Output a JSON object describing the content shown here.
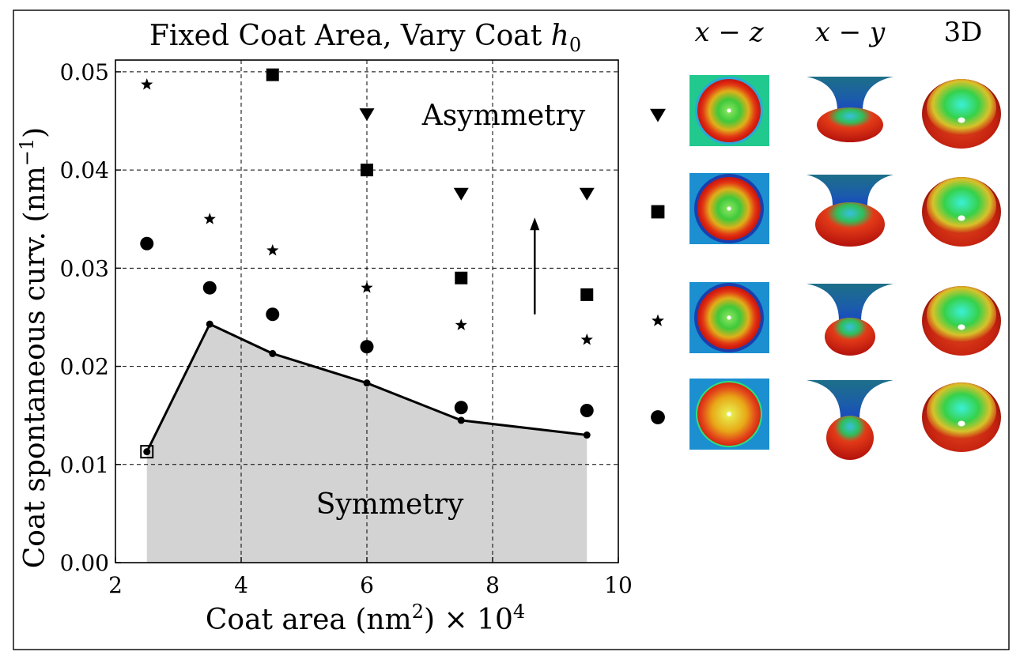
{
  "chart_data": {
    "type": "scatter",
    "title_prefix": "Fixed Coat Area, Vary Coat ",
    "title_var": "h",
    "title_sub": "0",
    "xlabel_main": "Coat area (nm",
    "xlabel_sup": "2",
    "xlabel_tail": ") × 10",
    "xlabel_exp": "4",
    "ylabel_main": "Coat spontaneous curv. (nm",
    "ylabel_sup": "−1",
    "ylabel_tail": ")",
    "xlim": [
      2,
      10
    ],
    "ylim": [
      0.0,
      0.0512
    ],
    "xticks": [
      2,
      4,
      6,
      8,
      10
    ],
    "xtick_labels": [
      "2",
      "4",
      "6",
      "8",
      "10"
    ],
    "yticks": [
      0.0,
      0.01,
      0.02,
      0.03,
      0.04,
      0.05
    ],
    "ytick_labels": [
      "0.00",
      "0.01",
      "0.02",
      "0.03",
      "0.04",
      "0.05"
    ],
    "grid": true,
    "region_labels": {
      "asymmetry": "Asymmetry",
      "symmetry": "Symmetry"
    },
    "boundary": {
      "x": [
        2.5,
        3.5,
        4.5,
        6.0,
        7.5,
        9.5
      ],
      "y": [
        0.0113,
        0.0243,
        0.0213,
        0.0183,
        0.0145,
        0.013
      ]
    },
    "open_square_marker": {
      "x": 2.5,
      "y": 0.0113
    },
    "series": [
      {
        "name": "circle",
        "marker": "circle",
        "x": [
          2.5,
          3.5,
          4.5,
          6.0,
          7.5,
          9.5
        ],
        "y": [
          0.0325,
          0.028,
          0.0253,
          0.022,
          0.0158,
          0.0155
        ]
      },
      {
        "name": "star",
        "marker": "star",
        "x": [
          2.5,
          3.5,
          4.5,
          6.0,
          7.5,
          9.5
        ],
        "y": [
          0.0487,
          0.035,
          0.0318,
          0.028,
          0.0242,
          0.0227
        ]
      },
      {
        "name": "square",
        "marker": "square",
        "x": [
          4.5,
          6.0,
          7.5,
          9.5
        ],
        "y": [
          0.0497,
          0.04,
          0.029,
          0.0273
        ]
      },
      {
        "name": "triangle",
        "marker": "triangle-down",
        "x": [
          6.0,
          7.5,
          9.5
        ],
        "y": [
          0.0458,
          0.0377,
          0.0377
        ]
      }
    ],
    "arrow": {
      "x": 8.67,
      "y_from": 0.0253,
      "y_to": 0.035
    }
  },
  "panel": {
    "headers": [
      {
        "a": "x",
        "op": " − ",
        "b": "z"
      },
      {
        "a": "x",
        "op": " − ",
        "b": "y"
      },
      {
        "plain": "3D"
      }
    ],
    "rows": [
      {
        "marker": "triangle-down",
        "xz_bg": "#22c98f"
      },
      {
        "marker": "square",
        "xz_bg": "#1b8fd0"
      },
      {
        "marker": "star",
        "xz_bg": "#1b8fd0"
      },
      {
        "marker": "circle",
        "xz_bg": "#1b8fd0"
      }
    ]
  }
}
